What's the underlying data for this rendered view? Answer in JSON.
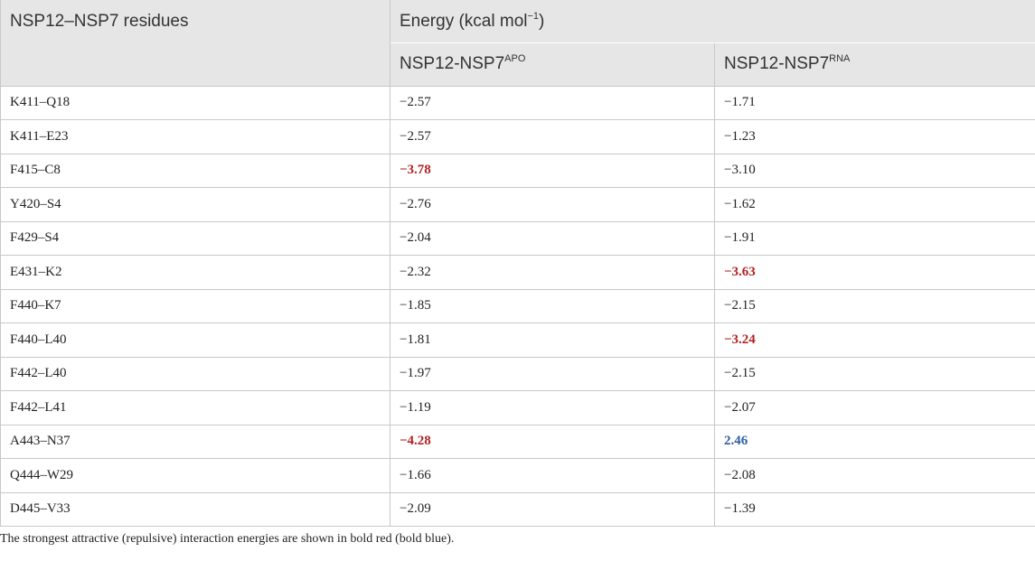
{
  "header": {
    "residues_label": "NSP12–NSP7 residues",
    "energy_label": "Energy (kcal mol",
    "energy_sup": "−1",
    "energy_close": ")",
    "col_apo_base": "NSP12-NSP7",
    "col_apo_sup": "APO",
    "col_rna_base": "NSP12-NSP7",
    "col_rna_sup": "RNA"
  },
  "rows": [
    {
      "pair": "K411–Q18",
      "apo": "−2.57",
      "apo_style": "",
      "rna": "−1.71",
      "rna_style": ""
    },
    {
      "pair": "K411–E23",
      "apo": "−2.57",
      "apo_style": "",
      "rna": "−1.23",
      "rna_style": ""
    },
    {
      "pair": "F415–C8",
      "apo": "−3.78",
      "apo_style": "red",
      "rna": "−3.10",
      "rna_style": ""
    },
    {
      "pair": "Y420–S4",
      "apo": "−2.76",
      "apo_style": "",
      "rna": "−1.62",
      "rna_style": ""
    },
    {
      "pair": "F429–S4",
      "apo": "−2.04",
      "apo_style": "",
      "rna": "−1.91",
      "rna_style": ""
    },
    {
      "pair": "E431–K2",
      "apo": "−2.32",
      "apo_style": "",
      "rna": "−3.63",
      "rna_style": "red"
    },
    {
      "pair": "F440–K7",
      "apo": "−1.85",
      "apo_style": "",
      "rna": "−2.15",
      "rna_style": ""
    },
    {
      "pair": "F440–L40",
      "apo": "−1.81",
      "apo_style": "",
      "rna": "−3.24",
      "rna_style": "red"
    },
    {
      "pair": "F442–L40",
      "apo": "−1.97",
      "apo_style": "",
      "rna": "−2.15",
      "rna_style": ""
    },
    {
      "pair": "F442–L41",
      "apo": "−1.19",
      "apo_style": "",
      "rna": "−2.07",
      "rna_style": ""
    },
    {
      "pair": "A443–N37",
      "apo": "−4.28",
      "apo_style": "red",
      "rna": "2.46",
      "rna_style": "blue"
    },
    {
      "pair": "Q444–W29",
      "apo": "−1.66",
      "apo_style": "",
      "rna": "−2.08",
      "rna_style": ""
    },
    {
      "pair": "D445–V33",
      "apo": "−2.09",
      "apo_style": "",
      "rna": "−1.39",
      "rna_style": ""
    }
  ],
  "footnote": "The strongest attractive (repulsive) interaction energies are shown in bold red (bold blue).",
  "colors": {
    "header_bg": "#e6e6e6",
    "attractive": "#b22222",
    "repulsive": "#2f5f9e",
    "border": "#c8c8c8"
  }
}
